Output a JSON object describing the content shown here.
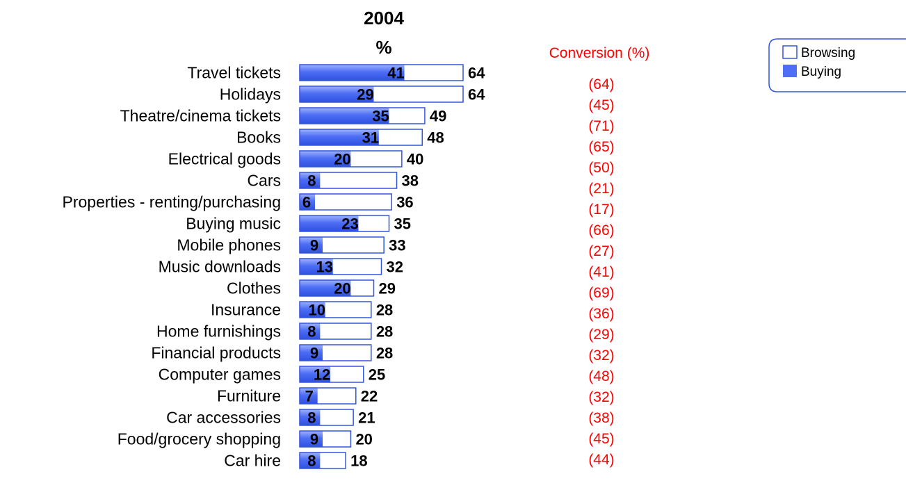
{
  "colors": {
    "browsing_fill": "#ffffff",
    "browsing_stroke": "#3355dd",
    "buying_fill": "#4d6ef5",
    "conversion_text": "#ff0000"
  },
  "chart_data": {
    "type": "bar",
    "orientation": "horizontal",
    "title": "2004",
    "subtitle": "%",
    "conversion_header": "Conversion (%)",
    "legend": {
      "placement": "top-right",
      "entries": [
        "Browsing",
        "Buying"
      ]
    },
    "xlim": [
      0,
      64
    ],
    "categories": [
      "Travel tickets",
      "Holidays",
      "Theatre/cinema tickets",
      "Books",
      "Electrical goods",
      "Cars",
      "Properties - renting/purchasing",
      "Buying music",
      "Mobile phones",
      "Music downloads",
      "Clothes",
      "Insurance",
      "Home furnishings",
      "Financial products",
      "Computer games",
      "Furniture",
      "Car accessories",
      "Food/grocery shopping",
      "Car hire"
    ],
    "series": [
      {
        "name": "Browsing",
        "values": [
          64,
          64,
          49,
          48,
          40,
          38,
          36,
          35,
          33,
          32,
          29,
          28,
          28,
          28,
          25,
          22,
          21,
          20,
          18
        ]
      },
      {
        "name": "Buying",
        "values": [
          41,
          29,
          35,
          31,
          20,
          8,
          6,
          23,
          9,
          13,
          20,
          10,
          8,
          9,
          12,
          7,
          8,
          9,
          8
        ]
      }
    ],
    "conversion": [
      "(64)",
      "(45)",
      "(71)",
      "(65)",
      "(50)",
      "(21)",
      "(17)",
      "(66)",
      "(27)",
      "(41)",
      "(69)",
      "(36)",
      "(29)",
      "(32)",
      "(48)",
      "(32)",
      "(38)",
      "(45)",
      "(44)"
    ]
  }
}
